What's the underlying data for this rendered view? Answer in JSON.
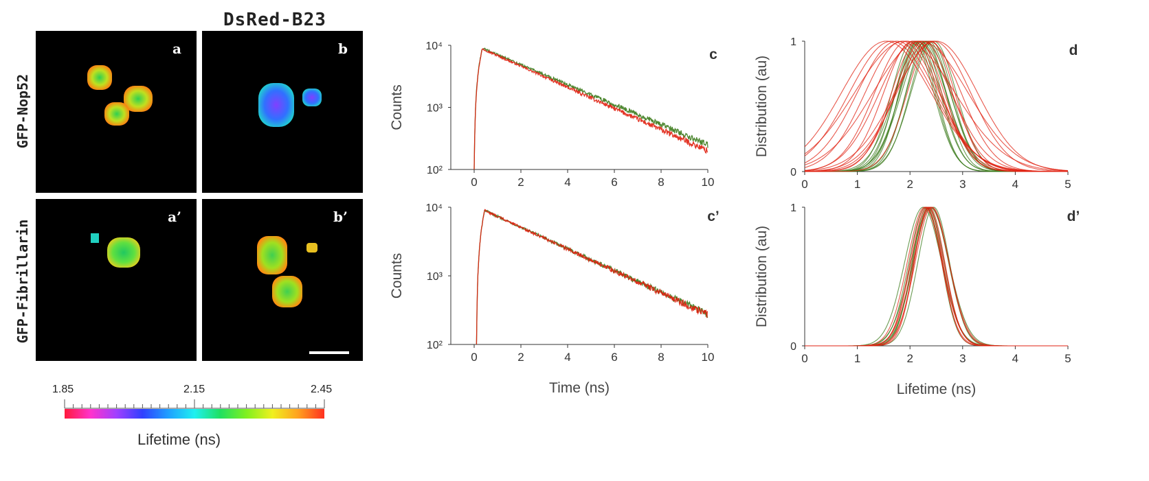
{
  "figure": {
    "column_header": "DsRed-B23",
    "row_labels": [
      "GFP-Nop52",
      "GFP-Fibrillarin"
    ],
    "panels": {
      "a": "a",
      "b": "b",
      "a_prime": "a’",
      "b_prime": "b’",
      "c": "c",
      "c_prime": "c’",
      "d": "d",
      "d_prime": "d’"
    },
    "colorbar": {
      "min_label": "1.85",
      "mid_label": "2.15",
      "max_label": "2.45",
      "title": "Lifetime (ns)",
      "gradient_colors": [
        "#ff1a3c",
        "#ff33cc",
        "#a040ff",
        "#3040ff",
        "#20a0ff",
        "#20f0f0",
        "#20e060",
        "#80f020",
        "#f0f020",
        "#ffa020",
        "#ff3020"
      ]
    },
    "colors": {
      "green_series": "#3a7a1a",
      "red_series": "#e02010"
    }
  },
  "chart_data": [
    {
      "panel": "c",
      "type": "line",
      "xlabel": "",
      "ylabel": "Counts",
      "yscale": "log",
      "xlim": [
        -1,
        10
      ],
      "ylim": [
        100,
        10000
      ],
      "xticks": [
        "0",
        "2",
        "4",
        "6",
        "8",
        "10"
      ],
      "yticks": [
        "10²",
        "10³",
        "10⁴"
      ],
      "series": [
        {
          "color": "#3a7a1a",
          "decays": [
            {
              "t0": 0.0,
              "tpeak": 0.35,
              "peak": 9000,
              "tau": 2.7
            }
          ]
        },
        {
          "color": "#e02010",
          "decays": [
            {
              "t0": 0.0,
              "tpeak": 0.35,
              "peak": 8800,
              "tau": 2.55
            }
          ]
        }
      ]
    },
    {
      "panel": "c’",
      "type": "line",
      "xlabel": "Time (ns)",
      "ylabel": "Counts",
      "yscale": "log",
      "xlim": [
        -1,
        10
      ],
      "ylim": [
        100,
        10000
      ],
      "xticks": [
        "0",
        "2",
        "4",
        "6",
        "8",
        "10"
      ],
      "yticks": [
        "10²",
        "10³",
        "10⁴"
      ],
      "series": [
        {
          "color": "#3a7a1a",
          "decays": [
            {
              "t0": 0.1,
              "tpeak": 0.45,
              "peak": 9000,
              "tau": 2.75
            }
          ]
        },
        {
          "color": "#e02010",
          "decays": [
            {
              "t0": 0.1,
              "tpeak": 0.45,
              "peak": 9000,
              "tau": 2.73
            }
          ]
        }
      ]
    },
    {
      "panel": "d",
      "type": "line",
      "xlabel": "",
      "ylabel": "Distribution (au)",
      "xlim": [
        0,
        5
      ],
      "ylim": [
        0,
        1
      ],
      "xticks": [
        "0",
        "1",
        "2",
        "3",
        "4",
        "5"
      ],
      "yticks": [
        "0",
        "1"
      ],
      "series": [
        {
          "color": "#3a7a1a",
          "curves": [
            {
              "mu": 2.05,
              "sigma": 0.4
            },
            {
              "mu": 2.1,
              "sigma": 0.38
            },
            {
              "mu": 2.15,
              "sigma": 0.42
            },
            {
              "mu": 2.2,
              "sigma": 0.4
            },
            {
              "mu": 2.25,
              "sigma": 0.44
            },
            {
              "mu": 2.3,
              "sigma": 0.38
            },
            {
              "mu": 2.35,
              "sigma": 0.42
            },
            {
              "mu": 2.4,
              "sigma": 0.4
            },
            {
              "mu": 2.45,
              "sigma": 0.43
            },
            {
              "mu": 2.2,
              "sigma": 0.48
            },
            {
              "mu": 2.3,
              "sigma": 0.46
            },
            {
              "mu": 2.15,
              "sigma": 0.36
            }
          ]
        },
        {
          "color": "#e02010",
          "curves": [
            {
              "mu": 1.55,
              "sigma": 0.85
            },
            {
              "mu": 1.65,
              "sigma": 0.8
            },
            {
              "mu": 1.75,
              "sigma": 0.75
            },
            {
              "mu": 1.85,
              "sigma": 0.7
            },
            {
              "mu": 1.95,
              "sigma": 0.62
            },
            {
              "mu": 2.05,
              "sigma": 0.55
            },
            {
              "mu": 2.15,
              "sigma": 0.5
            },
            {
              "mu": 2.25,
              "sigma": 0.55
            },
            {
              "mu": 2.35,
              "sigma": 0.62
            },
            {
              "mu": 2.45,
              "sigma": 0.7
            },
            {
              "mu": 2.5,
              "sigma": 0.78
            },
            {
              "mu": 2.2,
              "sigma": 0.9
            },
            {
              "mu": 1.9,
              "sigma": 0.95
            },
            {
              "mu": 2.4,
              "sigma": 0.45
            },
            {
              "mu": 2.1,
              "sigma": 0.68
            }
          ]
        }
      ]
    },
    {
      "panel": "d’",
      "type": "line",
      "xlabel": "Lifetime (ns)",
      "ylabel": "Distribution (au)",
      "xlim": [
        0,
        5
      ],
      "ylim": [
        0,
        1
      ],
      "xticks": [
        "0",
        "1",
        "2",
        "3",
        "4",
        "5"
      ],
      "yticks": [
        "0",
        "1"
      ],
      "series": [
        {
          "color": "#3a7a1a",
          "curves": [
            {
              "mu": 2.25,
              "sigma": 0.35
            },
            {
              "mu": 2.3,
              "sigma": 0.32
            },
            {
              "mu": 2.35,
              "sigma": 0.3
            },
            {
              "mu": 2.4,
              "sigma": 0.33
            },
            {
              "mu": 2.45,
              "sigma": 0.3
            },
            {
              "mu": 2.32,
              "sigma": 0.28
            },
            {
              "mu": 2.38,
              "sigma": 0.36
            }
          ]
        },
        {
          "color": "#e02010",
          "curves": [
            {
              "mu": 2.28,
              "sigma": 0.33
            },
            {
              "mu": 2.33,
              "sigma": 0.31
            },
            {
              "mu": 2.37,
              "sigma": 0.29
            },
            {
              "mu": 2.42,
              "sigma": 0.32
            },
            {
              "mu": 2.35,
              "sigma": 0.27
            },
            {
              "mu": 2.4,
              "sigma": 0.34
            },
            {
              "mu": 2.3,
              "sigma": 0.3
            }
          ]
        }
      ]
    }
  ]
}
